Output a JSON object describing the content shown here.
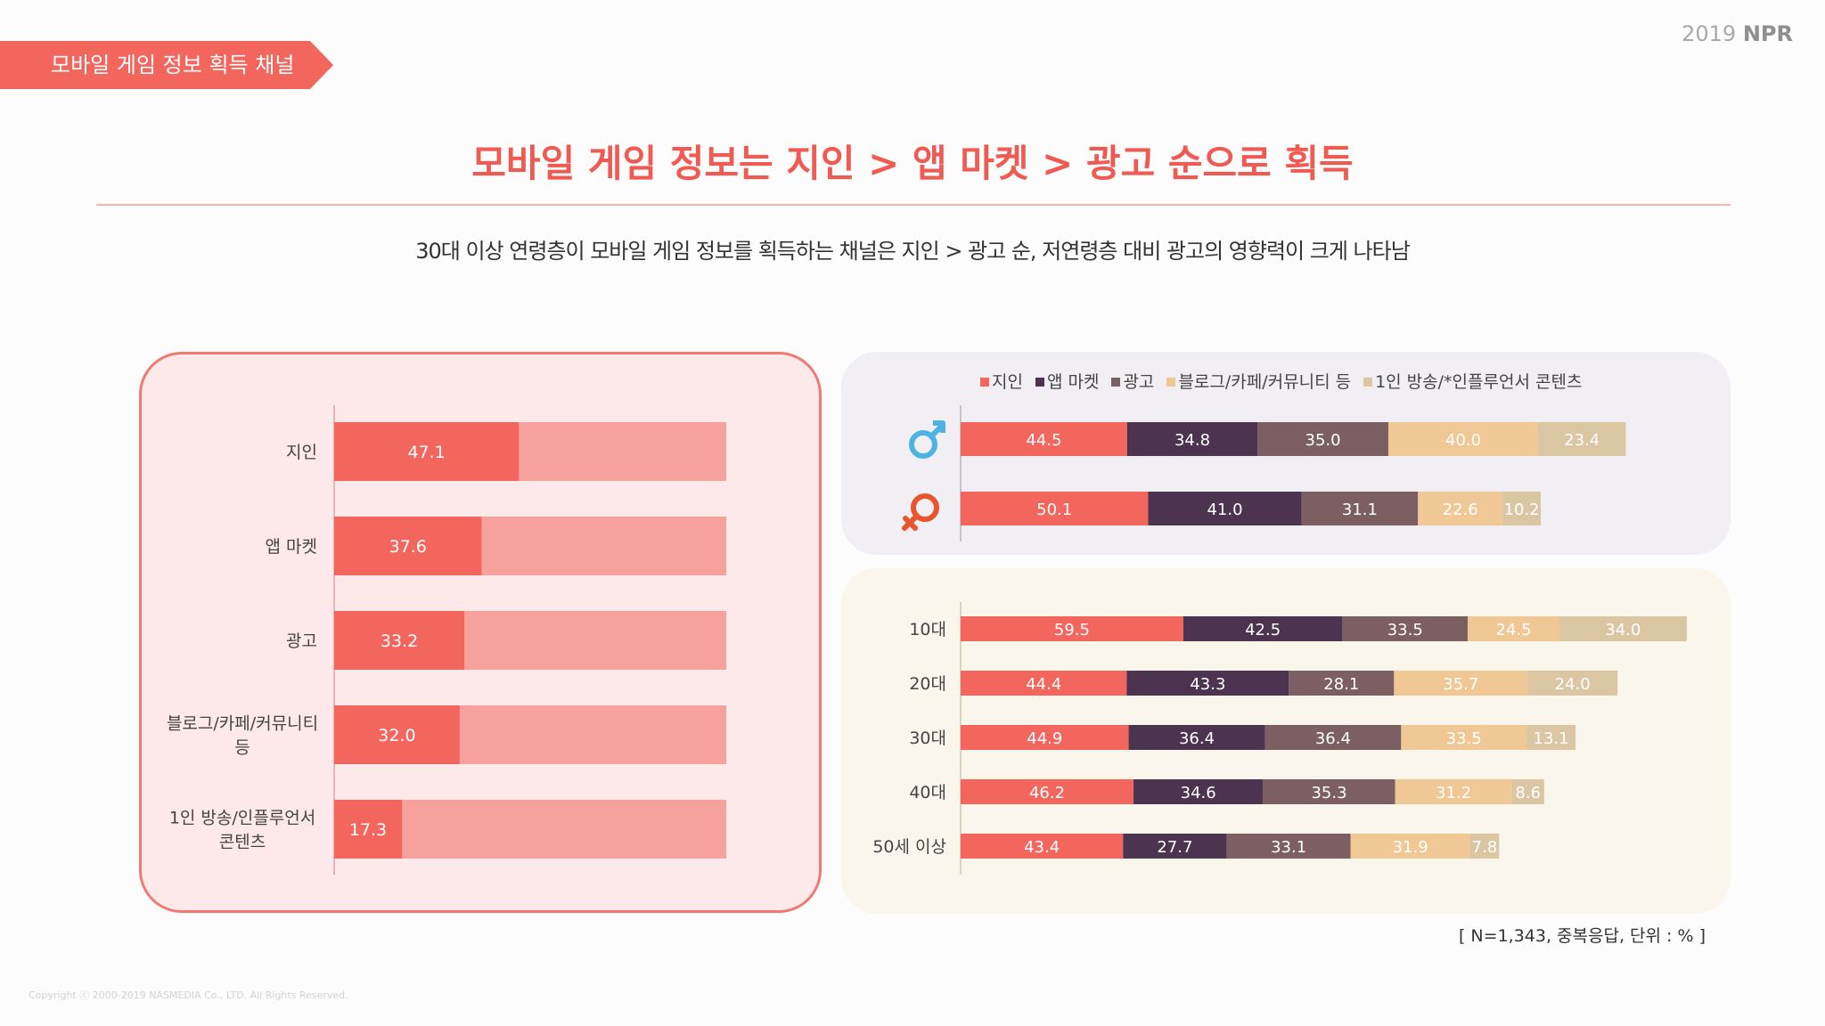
{
  "section_tag": "모바일 게임 정보 획득 채널",
  "brand": {
    "year": "2019",
    "name": "NPR"
  },
  "headline": "모바일 게임 정보는 지인 > 앱 마켓 > 광고 순으로 획득",
  "subheadline": "30대 이상 연령층이 모바일 게임 정보를 획득하는 채널은 지인 > 광고 순, 저연령층 대비 광고의 영향력이 크게 나타남",
  "note": "[ N=1,343, 중복응답, 단위 : % ]",
  "copyright": "Copyright ⓒ 2000-2019 NASMEDIA Co., LTD. All Rights Reserved.",
  "colors": {
    "accent": "#f2665e",
    "bar_bg": "#f7a19c",
    "s1": "#f2665e",
    "s2": "#4c3350",
    "s3": "#7b5f62",
    "s4": "#f0c896",
    "s5": "#dbc6a4",
    "male": "#4db3e0",
    "female": "#e8552d"
  },
  "chart_data": [
    {
      "type": "bar",
      "orientation": "horizontal",
      "title": "",
      "categories": [
        "지인",
        "앱 마켓",
        "광고",
        "블로그/카페/커뮤니티 등",
        "1인 방송/인플루언서 콘텐츠"
      ],
      "category_lines": [
        [
          "지인"
        ],
        [
          "앱 마켓"
        ],
        [
          "광고"
        ],
        [
          "블로그/카페/커뮤니티",
          "등"
        ],
        [
          "1인 방송/인플루언서",
          "콘텐츠"
        ]
      ],
      "values": [
        47.1,
        37.6,
        33.2,
        32.0,
        17.3
      ],
      "labels": [
        "47.1",
        "37.6",
        "33.2",
        "32.0",
        "17.3"
      ],
      "xlim": [
        0,
        100
      ]
    },
    {
      "type": "bar",
      "orientation": "horizontal",
      "stacked": true,
      "legend": [
        "지인",
        "앱 마켓",
        "광고",
        "블로그/카페/커뮤니티 등",
        "1인 방송/*인플루언서 콘텐츠"
      ],
      "categories": [
        "남성",
        "여성"
      ],
      "icons": [
        "male-icon",
        "female-icon"
      ],
      "series": [
        {
          "name": "지인",
          "values": [
            44.5,
            50.1
          ],
          "labels": [
            "44.5",
            "50.1"
          ]
        },
        {
          "name": "앱 마켓",
          "values": [
            34.8,
            41.0
          ],
          "labels": [
            "34.8",
            "41.0"
          ]
        },
        {
          "name": "광고",
          "values": [
            35.0,
            31.1
          ],
          "labels": [
            "35.0",
            "31.1"
          ]
        },
        {
          "name": "블로그/카페/커뮤니티 등",
          "values": [
            40.0,
            22.6
          ],
          "labels": [
            "40.0",
            "22.6"
          ]
        },
        {
          "name": "1인 방송/*인플루언서 콘텐츠",
          "values": [
            23.4,
            10.2
          ],
          "labels": [
            "23.4",
            "10.2"
          ]
        }
      ]
    },
    {
      "type": "bar",
      "orientation": "horizontal",
      "stacked": true,
      "categories": [
        "10대",
        "20대",
        "30대",
        "40대",
        "50세 이상"
      ],
      "series": [
        {
          "name": "지인",
          "values": [
            59.5,
            44.4,
            44.9,
            46.2,
            43.4
          ],
          "labels": [
            "59.5",
            "44.4",
            "44.9",
            "46.2",
            "43.4"
          ]
        },
        {
          "name": "앱 마켓",
          "values": [
            42.5,
            43.3,
            36.4,
            34.6,
            27.7
          ],
          "labels": [
            "42.5",
            "43.3",
            "36.4",
            "34.6",
            "27.7"
          ]
        },
        {
          "name": "광고",
          "values": [
            33.5,
            28.1,
            36.4,
            35.3,
            33.1
          ],
          "labels": [
            "33.5",
            "28.1",
            "36.4",
            "35.3",
            "33.1"
          ]
        },
        {
          "name": "블로그/카페/커뮤니티 등",
          "values": [
            24.5,
            35.7,
            33.5,
            31.2,
            31.9
          ],
          "labels": [
            "24.5",
            "35.7",
            "33.5",
            "31.2",
            "31.9"
          ]
        },
        {
          "name": "1인 방송/*인플루언서 콘텐츠",
          "values": [
            34.0,
            24.0,
            13.1,
            8.6,
            7.8
          ],
          "labels": [
            "34.0",
            "24.0",
            "13.1",
            "8.6",
            "7.8"
          ]
        }
      ]
    }
  ]
}
